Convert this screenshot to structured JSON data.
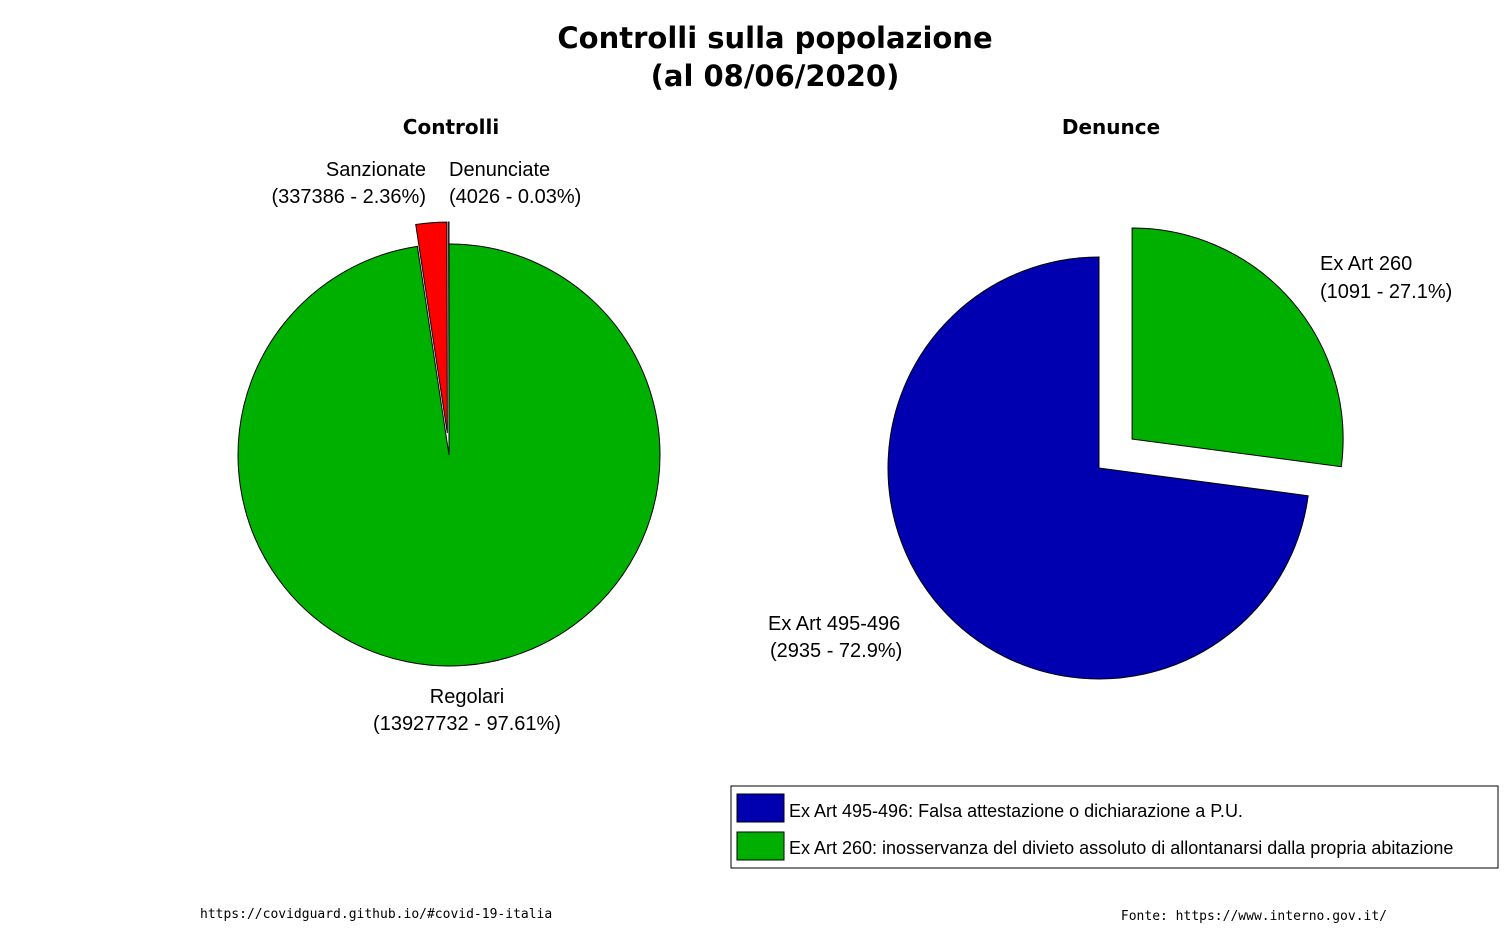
{
  "title_line1": "Controlli sulla popolazione",
  "title_line2": "(al 08/06/2020)",
  "footer_left": "https://covidguard.github.io/#covid-19-italia",
  "footer_right": "Fonte: https://www.interno.gov.it/",
  "chart_data": [
    {
      "type": "pie",
      "title": "Controlli",
      "slices": [
        {
          "name": "Regolari",
          "value": 13927732,
          "percent": 97.61,
          "label": "(13927732 - 97.61%)",
          "color": "#00b000",
          "exploded": false
        },
        {
          "name": "Sanzionate",
          "value": 337386,
          "percent": 2.36,
          "label": "(337386 - 2.36%)",
          "color": "#ff0000",
          "exploded": true
        },
        {
          "name": "Denunciate",
          "value": 4026,
          "percent": 0.03,
          "label": "(4026 - 0.03%)",
          "color": "#000000",
          "exploded": true
        }
      ]
    },
    {
      "type": "pie",
      "title": "Denunce",
      "slices": [
        {
          "name": "Ex Art 495-496",
          "value": 2935,
          "percent": 72.9,
          "label": "(2935 - 72.9%)",
          "color": "#0000b0",
          "exploded": false
        },
        {
          "name": "Ex Art 260",
          "value": 1091,
          "percent": 27.1,
          "label": "(1091 - 27.1%)",
          "color": "#00b000",
          "exploded": true
        }
      ],
      "legend": {
        "placement": "bottom-right",
        "items": [
          {
            "text": "Ex Art 495-496: Falsa attestazione o dichiarazione a P.U.",
            "color": "#0000b0"
          },
          {
            "text": "Ex Art 260: inosservanza del divieto assoluto di allontanarsi dalla propria abitazione",
            "color": "#00b000"
          }
        ]
      }
    }
  ]
}
